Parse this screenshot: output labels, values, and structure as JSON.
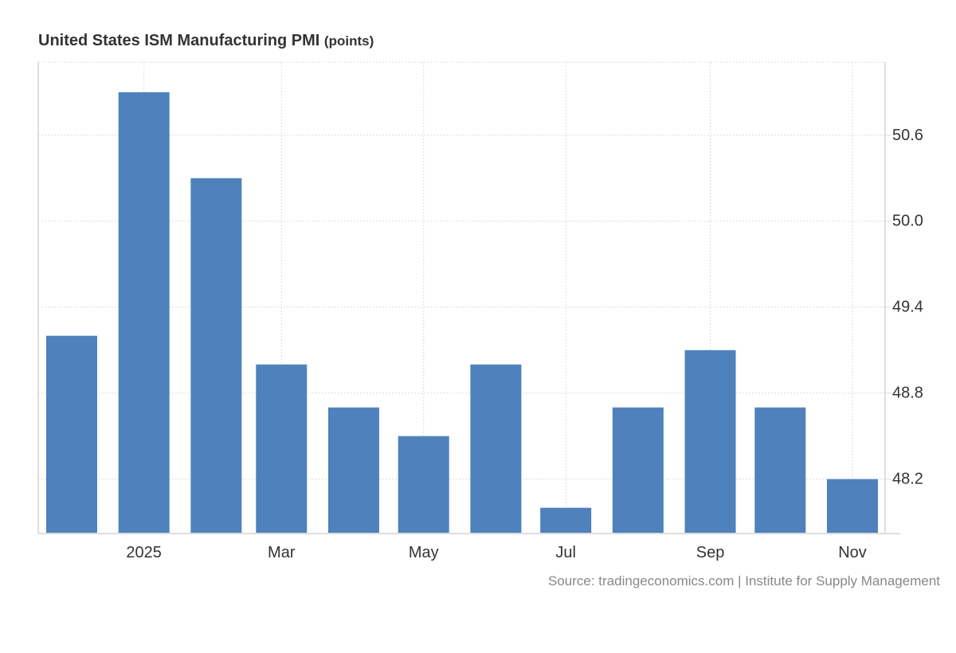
{
  "chart_data": {
    "type": "bar",
    "title": "United States ISM Manufacturing PMI",
    "unit": "(points)",
    "source": "Source: tradingeconomics.com | Institute for Supply Management",
    "dates": [
      "2024-12-01",
      "2025-01-01",
      "2025-02-01",
      "2025-03-01",
      "2025-04-01",
      "2025-05-01",
      "2025-06-01",
      "2025-07-01",
      "2025-08-01",
      "2025-09-01",
      "2025-10-01",
      "2025-11-01"
    ],
    "categories": [
      "Dec 2024",
      "Jan 2025",
      "Feb 2025",
      "Mar 2025",
      "Apr 2025",
      "May 2025",
      "Jun 2025",
      "Jul 2025",
      "Aug 2025",
      "Sep 2025",
      "Oct 2025",
      "Nov 2025"
    ],
    "values": [
      49.2,
      50.9,
      50.3,
      49.0,
      48.7,
      48.5,
      49.0,
      48.0,
      48.7,
      49.1,
      48.7,
      48.2
    ],
    "x_ticks": [
      {
        "date": "2025-01-01",
        "label": "2025"
      },
      {
        "date": "2025-03-01",
        "label": "Mar"
      },
      {
        "date": "2025-05-01",
        "label": "May"
      },
      {
        "date": "2025-07-01",
        "label": "Jul"
      },
      {
        "date": "2025-09-01",
        "label": "Sep"
      },
      {
        "date": "2025-11-01",
        "label": "Nov"
      }
    ],
    "y_ticks": [
      "48.2",
      "48.8",
      "49.4",
      "50.0",
      "50.6"
    ],
    "ylim": [
      47.82,
      51.11
    ],
    "yaxis_side": "right",
    "grid": true,
    "bar_color": "#4f81bd",
    "xlabel": "",
    "ylabel": ""
  }
}
